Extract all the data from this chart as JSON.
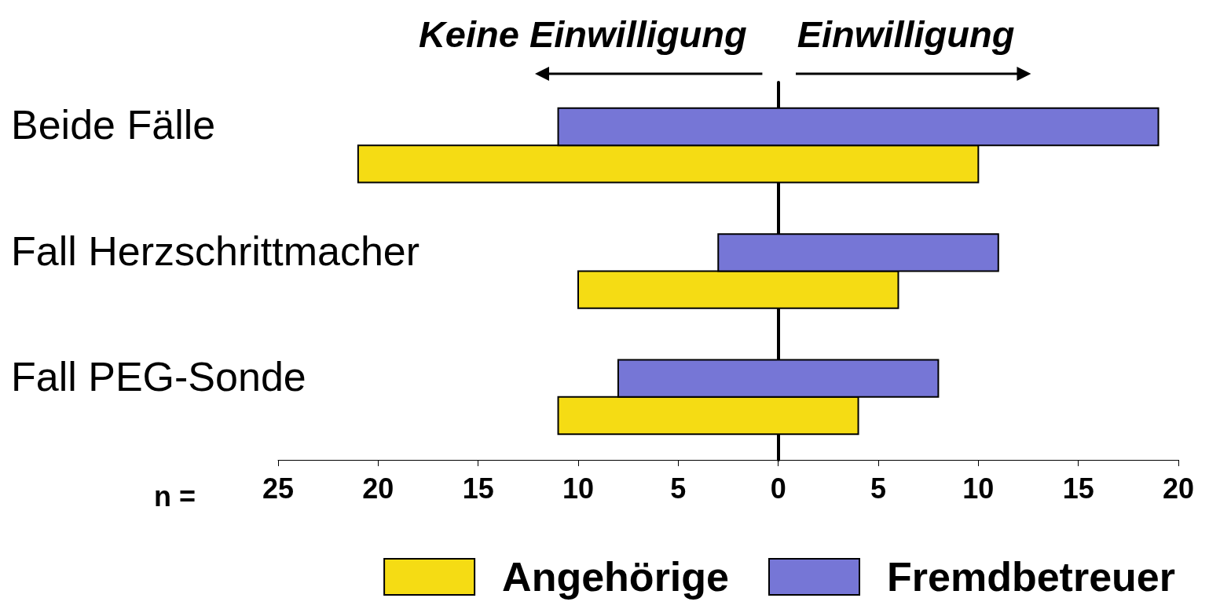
{
  "chart_data": {
    "type": "bar",
    "orientation": "horizontal",
    "categories": [
      "Beide Fälle",
      "Fall Herzschrittmacher",
      "Fall PEG-Sonde"
    ],
    "series": [
      {
        "name": "Angehörige",
        "color": "#f5dc14",
        "base": [
          -21,
          -10,
          -11
        ],
        "values": [
          31,
          16,
          15
        ]
      },
      {
        "name": "Fremdbetreuer",
        "color": "#7676d6",
        "base": [
          -11,
          -3,
          -8
        ],
        "values": [
          30,
          14,
          16
        ]
      }
    ],
    "xlabel": "n =",
    "xlim": [
      -25,
      20
    ],
    "xticks": [
      {
        "value": -25,
        "label": "25"
      },
      {
        "value": -20,
        "label": "20"
      },
      {
        "value": -15,
        "label": "15"
      },
      {
        "value": -10,
        "label": "10"
      },
      {
        "value": -5,
        "label": "5"
      },
      0,
      5,
      10,
      15,
      20
    ],
    "annotations": [
      "Keine Einwilligung",
      "Einwilligung"
    ],
    "legend": "bottom right"
  }
}
